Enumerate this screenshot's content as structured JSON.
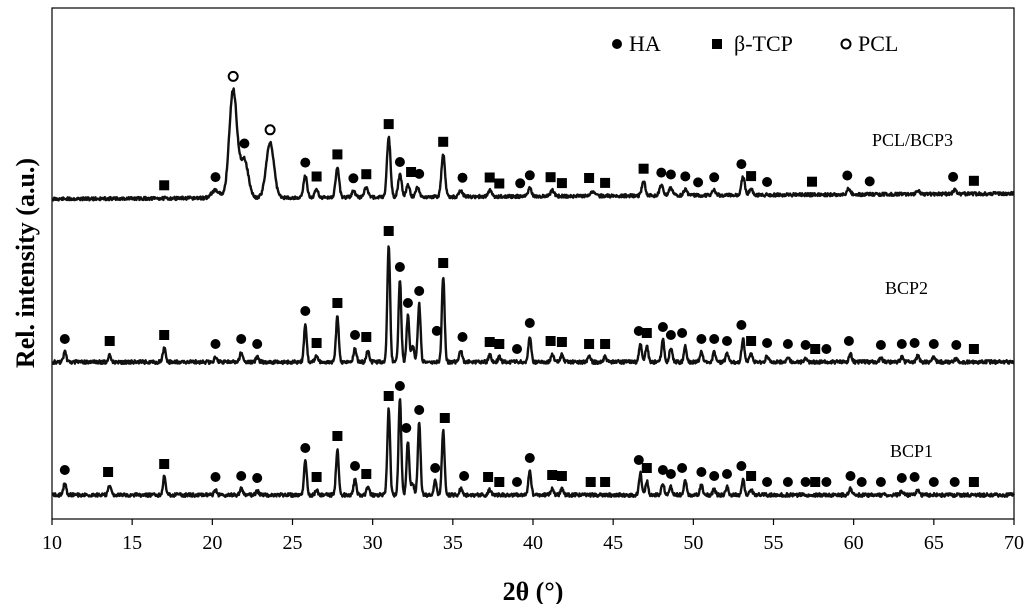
{
  "chart_data": {
    "type": "line",
    "xlabel": "2θ (°)",
    "ylabel": "Rel. intensity (a.u.)",
    "xlim": [
      10,
      70
    ],
    "xticks": [
      10,
      15,
      20,
      25,
      30,
      35,
      40,
      45,
      50,
      55,
      60,
      65,
      70
    ],
    "y_tick_labels": "none",
    "grid": false,
    "legend": {
      "placement": "top-right",
      "entries": [
        {
          "label": "HA",
          "marker": "filled-circle"
        },
        {
          "label": "β-TCP",
          "marker": "filled-square"
        },
        {
          "label": "PCL",
          "marker": "open-circle"
        }
      ]
    },
    "series": [
      {
        "name": "PCL/BCP3",
        "peaks": [
          {
            "x": 21.3,
            "h": 108
          },
          {
            "x": 22.0,
            "h": 38
          },
          {
            "x": 23.6,
            "h": 55
          },
          {
            "x": 20.2,
            "h": 8
          },
          {
            "x": 25.8,
            "h": 22
          },
          {
            "x": 26.5,
            "h": 8
          },
          {
            "x": 27.8,
            "h": 30
          },
          {
            "x": 28.8,
            "h": 6
          },
          {
            "x": 29.6,
            "h": 10
          },
          {
            "x": 31.0,
            "h": 60
          },
          {
            "x": 31.7,
            "h": 22
          },
          {
            "x": 32.2,
            "h": 12
          },
          {
            "x": 32.8,
            "h": 10
          },
          {
            "x": 34.4,
            "h": 42
          },
          {
            "x": 35.5,
            "h": 6
          },
          {
            "x": 37.3,
            "h": 6
          },
          {
            "x": 39.8,
            "h": 8
          },
          {
            "x": 41.2,
            "h": 6
          },
          {
            "x": 43.7,
            "h": 5
          },
          {
            "x": 46.9,
            "h": 14
          },
          {
            "x": 48.0,
            "h": 10
          },
          {
            "x": 48.6,
            "h": 8
          },
          {
            "x": 49.5,
            "h": 6
          },
          {
            "x": 51.3,
            "h": 5
          },
          {
            "x": 53.1,
            "h": 18
          },
          {
            "x": 53.6,
            "h": 6
          },
          {
            "x": 59.7,
            "h": 6
          },
          {
            "x": 64.0,
            "h": 4
          },
          {
            "x": 66.3,
            "h": 4
          }
        ],
        "markers": [
          {
            "x": 17.0,
            "type": "TCP"
          },
          {
            "x": 20.2,
            "type": "HA"
          },
          {
            "x": 21.3,
            "type": "PCL"
          },
          {
            "x": 22.0,
            "type": "HA"
          },
          {
            "x": 23.6,
            "type": "PCL"
          },
          {
            "x": 25.8,
            "type": "HA"
          },
          {
            "x": 26.5,
            "type": "TCP"
          },
          {
            "x": 27.8,
            "type": "TCP"
          },
          {
            "x": 28.8,
            "type": "HA"
          },
          {
            "x": 29.6,
            "type": "TCP"
          },
          {
            "x": 31.0,
            "type": "TCP"
          },
          {
            "x": 31.7,
            "type": "HA"
          },
          {
            "x": 32.4,
            "type": "TCP"
          },
          {
            "x": 32.9,
            "type": "HA"
          },
          {
            "x": 34.4,
            "type": "TCP"
          },
          {
            "x": 35.6,
            "type": "HA"
          },
          {
            "x": 37.3,
            "type": "TCP"
          },
          {
            "x": 37.9,
            "type": "TCP"
          },
          {
            "x": 39.2,
            "type": "HA"
          },
          {
            "x": 39.8,
            "type": "HA"
          },
          {
            "x": 41.1,
            "type": "TCP"
          },
          {
            "x": 41.8,
            "type": "TCP"
          },
          {
            "x": 43.5,
            "type": "TCP"
          },
          {
            "x": 44.5,
            "type": "TCP"
          },
          {
            "x": 46.9,
            "type": "TCP"
          },
          {
            "x": 48.0,
            "type": "HA"
          },
          {
            "x": 48.6,
            "type": "HA"
          },
          {
            "x": 49.5,
            "type": "HA"
          },
          {
            "x": 50.3,
            "type": "HA"
          },
          {
            "x": 51.3,
            "type": "HA"
          },
          {
            "x": 53.0,
            "type": "HA"
          },
          {
            "x": 53.6,
            "type": "TCP"
          },
          {
            "x": 54.6,
            "type": "HA"
          },
          {
            "x": 57.4,
            "type": "TCP"
          },
          {
            "x": 59.6,
            "type": "HA"
          },
          {
            "x": 61.0,
            "type": "HA"
          },
          {
            "x": 66.2,
            "type": "HA"
          },
          {
            "x": 67.5,
            "type": "TCP"
          }
        ]
      },
      {
        "name": "BCP2",
        "peaks": [
          {
            "x": 10.8,
            "h": 10
          },
          {
            "x": 13.6,
            "h": 8
          },
          {
            "x": 17.0,
            "h": 14
          },
          {
            "x": 20.2,
            "h": 5
          },
          {
            "x": 21.8,
            "h": 10
          },
          {
            "x": 22.8,
            "h": 5
          },
          {
            "x": 25.8,
            "h": 38
          },
          {
            "x": 26.5,
            "h": 6
          },
          {
            "x": 27.8,
            "h": 46
          },
          {
            "x": 28.9,
            "h": 14
          },
          {
            "x": 29.7,
            "h": 12
          },
          {
            "x": 31.0,
            "h": 118
          },
          {
            "x": 31.7,
            "h": 82
          },
          {
            "x": 32.2,
            "h": 46
          },
          {
            "x": 32.5,
            "h": 16
          },
          {
            "x": 32.9,
            "h": 58
          },
          {
            "x": 34.4,
            "h": 86
          },
          {
            "x": 35.5,
            "h": 12
          },
          {
            "x": 37.3,
            "h": 7
          },
          {
            "x": 37.9,
            "h": 5
          },
          {
            "x": 39.8,
            "h": 26
          },
          {
            "x": 41.2,
            "h": 8
          },
          {
            "x": 41.8,
            "h": 7
          },
          {
            "x": 43.5,
            "h": 5
          },
          {
            "x": 44.5,
            "h": 5
          },
          {
            "x": 46.7,
            "h": 18
          },
          {
            "x": 47.1,
            "h": 16
          },
          {
            "x": 48.1,
            "h": 22
          },
          {
            "x": 48.6,
            "h": 14
          },
          {
            "x": 49.5,
            "h": 16
          },
          {
            "x": 50.5,
            "h": 10
          },
          {
            "x": 51.3,
            "h": 10
          },
          {
            "x": 52.1,
            "h": 8
          },
          {
            "x": 53.1,
            "h": 24
          },
          {
            "x": 53.6,
            "h": 8
          },
          {
            "x": 54.6,
            "h": 6
          },
          {
            "x": 55.9,
            "h": 5
          },
          {
            "x": 57.0,
            "h": 4
          },
          {
            "x": 59.8,
            "h": 8
          },
          {
            "x": 61.7,
            "h": 4
          },
          {
            "x": 63.0,
            "h": 5
          },
          {
            "x": 64.0,
            "h": 6
          },
          {
            "x": 65.0,
            "h": 5
          },
          {
            "x": 66.4,
            "h": 4
          }
        ],
        "markers": [
          {
            "x": 10.8,
            "type": "HA"
          },
          {
            "x": 13.6,
            "type": "TCP"
          },
          {
            "x": 17.0,
            "type": "TCP"
          },
          {
            "x": 20.2,
            "type": "HA"
          },
          {
            "x": 21.8,
            "type": "HA"
          },
          {
            "x": 22.8,
            "type": "HA"
          },
          {
            "x": 25.8,
            "type": "HA"
          },
          {
            "x": 26.5,
            "type": "TCP"
          },
          {
            "x": 27.8,
            "type": "TCP"
          },
          {
            "x": 28.9,
            "type": "HA"
          },
          {
            "x": 29.6,
            "type": "TCP"
          },
          {
            "x": 31.0,
            "type": "TCP"
          },
          {
            "x": 31.7,
            "type": "HA"
          },
          {
            "x": 32.2,
            "type": "HA"
          },
          {
            "x": 32.9,
            "type": "HA"
          },
          {
            "x": 34.0,
            "type": "HA"
          },
          {
            "x": 34.4,
            "type": "TCP"
          },
          {
            "x": 35.6,
            "type": "HA"
          },
          {
            "x": 37.3,
            "type": "TCP"
          },
          {
            "x": 37.9,
            "type": "TCP"
          },
          {
            "x": 39.0,
            "type": "HA"
          },
          {
            "x": 39.8,
            "type": "HA"
          },
          {
            "x": 41.1,
            "type": "TCP"
          },
          {
            "x": 41.8,
            "type": "TCP"
          },
          {
            "x": 43.5,
            "type": "TCP"
          },
          {
            "x": 44.5,
            "type": "TCP"
          },
          {
            "x": 46.6,
            "type": "HA"
          },
          {
            "x": 47.1,
            "type": "TCP"
          },
          {
            "x": 48.1,
            "type": "HA"
          },
          {
            "x": 48.6,
            "type": "HA"
          },
          {
            "x": 49.3,
            "type": "HA"
          },
          {
            "x": 50.5,
            "type": "HA"
          },
          {
            "x": 51.3,
            "type": "HA"
          },
          {
            "x": 52.1,
            "type": "HA"
          },
          {
            "x": 53.0,
            "type": "HA"
          },
          {
            "x": 53.6,
            "type": "TCP"
          },
          {
            "x": 54.6,
            "type": "HA"
          },
          {
            "x": 55.9,
            "type": "HA"
          },
          {
            "x": 57.0,
            "type": "HA"
          },
          {
            "x": 57.6,
            "type": "TCP"
          },
          {
            "x": 58.3,
            "type": "HA"
          },
          {
            "x": 59.7,
            "type": "HA"
          },
          {
            "x": 61.7,
            "type": "HA"
          },
          {
            "x": 63.0,
            "type": "HA"
          },
          {
            "x": 63.8,
            "type": "HA"
          },
          {
            "x": 65.0,
            "type": "HA"
          },
          {
            "x": 66.4,
            "type": "HA"
          },
          {
            "x": 67.5,
            "type": "TCP"
          }
        ]
      },
      {
        "name": "BCP1",
        "peaks": [
          {
            "x": 10.8,
            "h": 12
          },
          {
            "x": 13.6,
            "h": 10
          },
          {
            "x": 17.0,
            "h": 18
          },
          {
            "x": 20.2,
            "h": 5
          },
          {
            "x": 21.8,
            "h": 6
          },
          {
            "x": 22.8,
            "h": 4
          },
          {
            "x": 25.8,
            "h": 34
          },
          {
            "x": 26.5,
            "h": 5
          },
          {
            "x": 27.8,
            "h": 46
          },
          {
            "x": 28.9,
            "h": 16
          },
          {
            "x": 29.7,
            "h": 8
          },
          {
            "x": 31.0,
            "h": 86
          },
          {
            "x": 31.7,
            "h": 96
          },
          {
            "x": 32.2,
            "h": 54
          },
          {
            "x": 32.5,
            "h": 12
          },
          {
            "x": 32.9,
            "h": 72
          },
          {
            "x": 33.9,
            "h": 14
          },
          {
            "x": 34.4,
            "h": 64
          },
          {
            "x": 35.5,
            "h": 6
          },
          {
            "x": 37.3,
            "h": 5
          },
          {
            "x": 39.8,
            "h": 24
          },
          {
            "x": 41.2,
            "h": 7
          },
          {
            "x": 41.8,
            "h": 6
          },
          {
            "x": 46.7,
            "h": 22
          },
          {
            "x": 47.1,
            "h": 14
          },
          {
            "x": 48.1,
            "h": 12
          },
          {
            "x": 48.6,
            "h": 8
          },
          {
            "x": 49.5,
            "h": 14
          },
          {
            "x": 50.5,
            "h": 10
          },
          {
            "x": 51.3,
            "h": 6
          },
          {
            "x": 52.1,
            "h": 8
          },
          {
            "x": 53.1,
            "h": 16
          },
          {
            "x": 53.6,
            "h": 6
          },
          {
            "x": 59.8,
            "h": 6
          },
          {
            "x": 63.0,
            "h": 4
          },
          {
            "x": 64.0,
            "h": 5
          }
        ],
        "markers": [
          {
            "x": 10.8,
            "type": "HA"
          },
          {
            "x": 13.5,
            "type": "TCP"
          },
          {
            "x": 17.0,
            "type": "TCP"
          },
          {
            "x": 20.2,
            "type": "HA"
          },
          {
            "x": 21.8,
            "type": "HA"
          },
          {
            "x": 22.8,
            "type": "HA"
          },
          {
            "x": 25.8,
            "type": "HA"
          },
          {
            "x": 26.5,
            "type": "TCP"
          },
          {
            "x": 27.8,
            "type": "TCP"
          },
          {
            "x": 28.9,
            "type": "HA"
          },
          {
            "x": 29.6,
            "type": "TCP"
          },
          {
            "x": 31.0,
            "type": "TCP"
          },
          {
            "x": 31.7,
            "type": "HA"
          },
          {
            "x": 32.1,
            "type": "HA"
          },
          {
            "x": 32.9,
            "type": "HA"
          },
          {
            "x": 33.9,
            "type": "HA"
          },
          {
            "x": 34.5,
            "type": "TCP"
          },
          {
            "x": 35.7,
            "type": "HA"
          },
          {
            "x": 37.2,
            "type": "TCP"
          },
          {
            "x": 37.9,
            "type": "TCP"
          },
          {
            "x": 39.0,
            "type": "HA"
          },
          {
            "x": 39.8,
            "type": "HA"
          },
          {
            "x": 41.2,
            "type": "TCP"
          },
          {
            "x": 41.8,
            "type": "TCP"
          },
          {
            "x": 43.6,
            "type": "TCP"
          },
          {
            "x": 44.5,
            "type": "TCP"
          },
          {
            "x": 46.6,
            "type": "HA"
          },
          {
            "x": 47.1,
            "type": "TCP"
          },
          {
            "x": 48.1,
            "type": "HA"
          },
          {
            "x": 48.6,
            "type": "HA"
          },
          {
            "x": 49.3,
            "type": "HA"
          },
          {
            "x": 50.5,
            "type": "HA"
          },
          {
            "x": 51.3,
            "type": "HA"
          },
          {
            "x": 52.1,
            "type": "HA"
          },
          {
            "x": 53.0,
            "type": "HA"
          },
          {
            "x": 53.6,
            "type": "TCP"
          },
          {
            "x": 54.6,
            "type": "HA"
          },
          {
            "x": 55.9,
            "type": "HA"
          },
          {
            "x": 57.0,
            "type": "HA"
          },
          {
            "x": 57.6,
            "type": "TCP"
          },
          {
            "x": 58.3,
            "type": "HA"
          },
          {
            "x": 59.8,
            "type": "HA"
          },
          {
            "x": 60.5,
            "type": "HA"
          },
          {
            "x": 61.7,
            "type": "HA"
          },
          {
            "x": 63.0,
            "type": "HA"
          },
          {
            "x": 63.8,
            "type": "HA"
          },
          {
            "x": 65.0,
            "type": "HA"
          },
          {
            "x": 66.3,
            "type": "HA"
          },
          {
            "x": 67.5,
            "type": "TCP"
          }
        ]
      }
    ]
  }
}
